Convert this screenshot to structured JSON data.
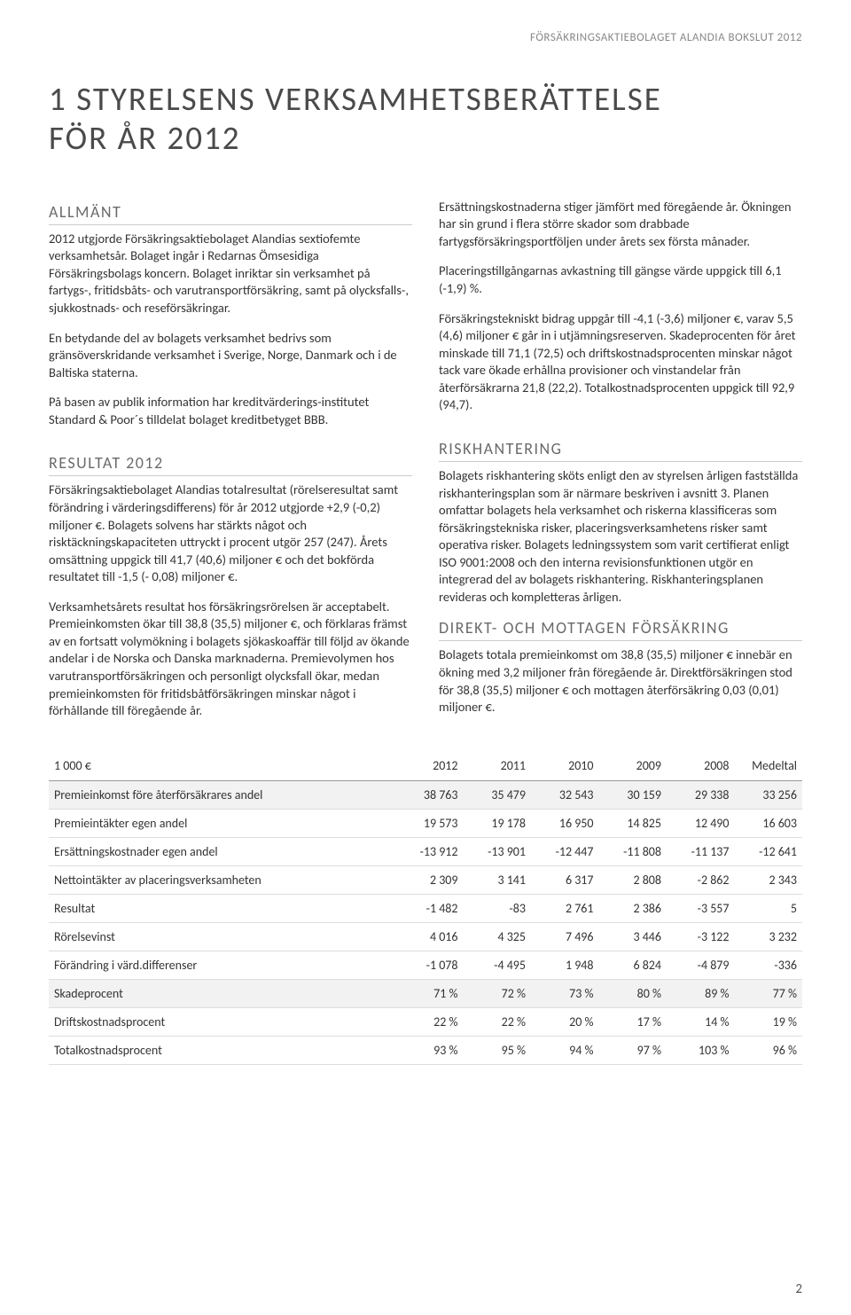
{
  "header_small": "FÖRSÄKRINGSAKTIEBOLAGET ALANDIA BOKSLUT 2012",
  "title_line1": "1  STYRELSENS VERKSAMHETSBERÄTTELSE",
  "title_line2": "FÖR ÅR 2012",
  "left": {
    "h_allmant": "ALLMÄNT",
    "p1": "2012 utgjorde Försäkringsaktiebolaget Alandias sextiofemte verksamhetsår. Bolaget ingår i Redarnas Ömsesidiga Försäkringsbolags koncern. Bolaget inriktar sin verksamhet på fartygs-, fritidsbåts- och varutransportförsäkring, samt på olycksfalls-, sjukkostnads- och reseförsäkringar.",
    "p2": "En betydande del av bolagets verksamhet bedrivs som gränsöverskridande verksamhet i Sverige, Norge, Danmark och i de Baltiska staterna.",
    "p3": "På basen av publik information har kreditvärderings-institutet Standard & Poor´s  tilldelat bolaget kreditbetyget BBB.",
    "h_resultat": "RESULTAT 2012",
    "p4": "Försäkringsaktiebolaget Alandias totalresultat (rörelseresultat samt förändring i värderingsdifferens) för år 2012 utgjorde +2,9 (-0,2) miljoner €. Bolagets solvens har stärkts något och risktäckningskapaciteten uttryckt i procent utgör 257 (247). Årets omsättning uppgick till 41,7 (40,6) miljoner € och det bokförda resultatet till -1,5 (- 0,08) miljoner €.",
    "p5": "Verksamhetsårets resultat hos försäkringsrörelsen är acceptabelt. Premieinkomsten ökar till 38,8 (35,5) miljoner €, och förklaras främst av en fortsatt volymökning i bolagets sjökaskoaffär till följd av ökande andelar i de Norska och Danska marknaderna. Premievolymen hos varutransportförsäkringen och personligt olycksfall ökar, medan premieinkomsten för fritidsbåtförsäkringen minskar något i förhållande till föregående år."
  },
  "right": {
    "p1": "Ersättningskostnaderna stiger jämfört med föregående år. Ökningen har sin grund i flera större skador som drabbade fartygsförsäkringsportföljen under årets sex första månader.",
    "p2": "Placeringstillgångarnas avkastning till gängse värde uppgick till 6,1 (-1,9) %.",
    "p3": "Försäkringstekniskt bidrag uppgår till -4,1 (-3,6) miljoner €, varav 5,5 (4,6) miljoner € går in i utjämningsreserven. Skadeprocenten för året minskade till 71,1 (72,5) och driftskostnadsprocenten minskar något tack vare ökade erhållna provisioner och vinstandelar från återförsäkrarna 21,8 (22,2). Totalkostnadsprocenten uppgick till 92,9 (94,7).",
    "h_risk": "RISKHANTERING",
    "p4": "Bolagets riskhantering sköts enligt den av styrelsen årligen fastställda riskhanteringsplan som är närmare beskriven i avsnitt 3. Planen omfattar bolagets hela verksamhet och riskerna klassificeras som försäkringstekniska risker, placeringsverksamhetens risker samt operativa risker. Bolagets ledningssystem som varit certifierat enligt ISO 9001:2008 och den interna revisionsfunktionen utgör en integrerad del av bolagets riskhantering. Riskhanteringsplanen revideras och kompletteras årligen.",
    "h_direkt": "DIREKT- OCH MOTTAGEN FÖRSÄKRING",
    "p5": "Bolagets totala premieinkomst om 38,8 (35,5) miljoner € innebär en ökning med 3,2 miljoner från föregående år. Direktförsäkringen stod för 38,8 (35,5) miljoner € och mottagen återförsäkring 0,03 (0,01) miljoner €."
  },
  "table": {
    "columns": [
      "1 000 €",
      "2012",
      "2011",
      "2010",
      "2009",
      "2008",
      "Medeltal"
    ],
    "rows": [
      {
        "shaded": true,
        "cells": [
          "Premieinkomst före återförsäkrares andel",
          "38 763",
          "35 479",
          "32 543",
          "30 159",
          "29 338",
          "33 256"
        ]
      },
      {
        "shaded": false,
        "cells": [
          "Premieintäkter egen andel",
          "19 573",
          "19 178",
          "16 950",
          "14 825",
          "12 490",
          "16 603"
        ]
      },
      {
        "shaded": false,
        "cells": [
          "Ersättningskostnader egen andel",
          "-13 912",
          "-13 901",
          "-12 447",
          "-11 808",
          "-11 137",
          "-12 641"
        ]
      },
      {
        "shaded": false,
        "cells": [
          "Nettointäkter av placeringsverksamheten",
          "2 309",
          "3 141",
          "6 317",
          "2 808",
          "-2 862",
          "2 343"
        ]
      },
      {
        "shaded": false,
        "cells": [
          "Resultat",
          "-1 482",
          "-83",
          "2 761",
          "2 386",
          "-3 557",
          "5"
        ]
      },
      {
        "shaded": false,
        "cells": [
          "Rörelsevinst",
          "4 016",
          "4 325",
          "7 496",
          "3 446",
          "-3 122",
          "3 232"
        ]
      },
      {
        "shaded": false,
        "cells": [
          "Förändring i värd.differenser",
          "-1 078",
          "-4 495",
          "1 948",
          "6 824",
          "-4 879",
          "-336"
        ]
      },
      {
        "shaded": true,
        "cells": [
          "Skadeprocent",
          "71 %",
          "72 %",
          "73 %",
          "80 %",
          "89 %",
          "77 %"
        ]
      },
      {
        "shaded": false,
        "cells": [
          "Driftskostnadsprocent",
          "22 %",
          "22 %",
          "20 %",
          "17 %",
          "14 %",
          "19 %"
        ]
      },
      {
        "shaded": false,
        "cells": [
          "Totalkostnadsprocent",
          "93 %",
          "95 %",
          "94 %",
          "97 %",
          "103 %",
          "96 %"
        ]
      }
    ],
    "col_widths": [
      "46%",
      "9%",
      "9%",
      "9%",
      "9%",
      "9%",
      "9%"
    ]
  },
  "page_number": "2",
  "styles": {
    "body_bg": "#ffffff",
    "text_color": "#333333",
    "muted_color": "#888888",
    "heading_color": "#4a4a4a",
    "h2_color": "#6a6a6a",
    "h2_border": "#cccccc",
    "table_header_border": "#999999",
    "table_row_border": "#dddddd",
    "table_shade": "#f2f2f2",
    "body_fontsize": 14.5,
    "h1_fontsize": 37,
    "h2_fontsize": 18,
    "small_fontsize": 13,
    "table_fontsize": 14
  }
}
